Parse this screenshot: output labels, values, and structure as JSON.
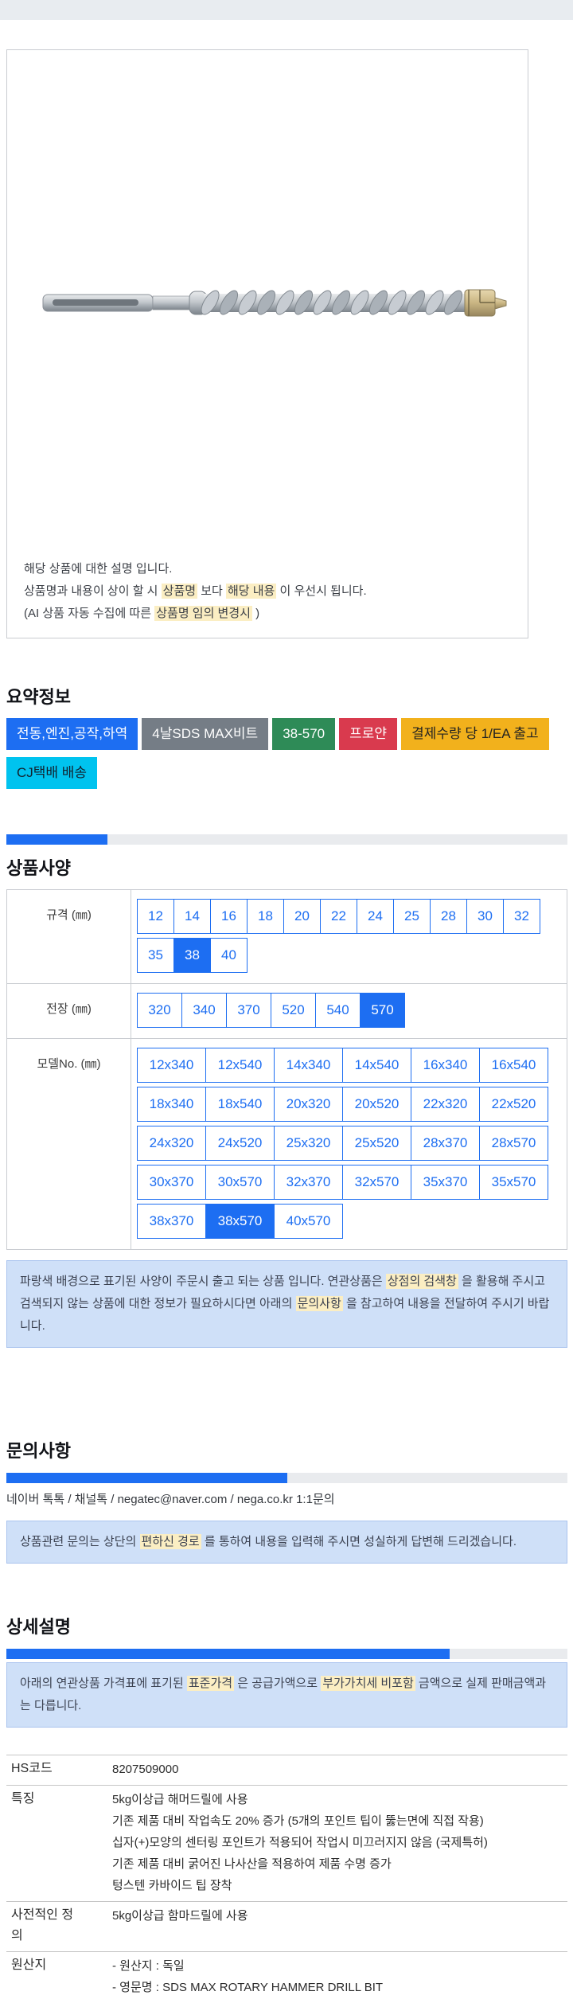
{
  "colors": {
    "accent_blue": "#1d6ef2",
    "highlight_yellow": "#fbeec3",
    "info_box_bg": "#cfe0f8",
    "info_box_border": "#a9c3ee",
    "progress_track": "#e9ebee",
    "topbar_bg": "#e8ecf0"
  },
  "product_box": {
    "image_name": "sds-max-rotary-hammer-drill-bit-photo",
    "description_lines": [
      [
        {
          "text": "해당 상품에 대한 설명 입니다.",
          "hl": false
        }
      ],
      [
        {
          "text": "상품명과 내용이 상이 할 시 ",
          "hl": false
        },
        {
          "text": "상품명",
          "hl": true
        },
        {
          "text": " 보다 ",
          "hl": false
        },
        {
          "text": "해당 내용",
          "hl": true
        },
        {
          "text": " 이 우선시 됩니다.",
          "hl": false
        }
      ],
      [
        {
          "text": "(AI 상품 자동 수집에 따른 ",
          "hl": false
        },
        {
          "text": "상품명 임의 변경시",
          "hl": true
        },
        {
          "text": " )",
          "hl": false
        }
      ]
    ]
  },
  "summary": {
    "title": "요약정보",
    "badges": [
      {
        "label": "전동,엔진,공작,하역",
        "bg": "#1d6ef2",
        "fg": "#ffffff"
      },
      {
        "label": "4날SDS MAX비트",
        "bg": "#757d86",
        "fg": "#ffffff"
      },
      {
        "label": "38-570",
        "bg": "#2e8b57",
        "fg": "#ffffff"
      },
      {
        "label": "프로얀",
        "bg": "#d93a4e",
        "fg": "#ffffff"
      },
      {
        "label": "결제수량 당 1/EA 출고",
        "bg": "#f2b11c",
        "fg": "#222222"
      },
      {
        "label": "CJ택배 배송",
        "bg": "#00c3ef",
        "fg": "#12212e"
      }
    ]
  },
  "specs": {
    "title": "상품사양",
    "progress_percent": 18,
    "rows": [
      {
        "label": "규격 (㎜)",
        "btn_class": "bw46",
        "groups": [
          [
            {
              "label": "12"
            },
            {
              "label": "14"
            },
            {
              "label": "16"
            },
            {
              "label": "18"
            },
            {
              "label": "20"
            },
            {
              "label": "22"
            },
            {
              "label": "24"
            },
            {
              "label": "25"
            },
            {
              "label": "28"
            },
            {
              "label": "30"
            },
            {
              "label": "32"
            }
          ],
          [
            {
              "label": "35"
            },
            {
              "label": "38",
              "selected": true
            },
            {
              "label": "40"
            }
          ]
        ]
      },
      {
        "label": "전장 (㎜)",
        "btn_class": "bw56",
        "groups": [
          [
            {
              "label": "320"
            },
            {
              "label": "340"
            },
            {
              "label": "370"
            },
            {
              "label": "520"
            },
            {
              "label": "540"
            },
            {
              "label": "570",
              "selected": true
            }
          ]
        ]
      },
      {
        "label": "모델No. (㎜)",
        "btn_class": "bw86",
        "groups": [
          [
            {
              "label": "12x340"
            },
            {
              "label": "12x540"
            },
            {
              "label": "14x340"
            },
            {
              "label": "14x540"
            },
            {
              "label": "16x340"
            },
            {
              "label": "16x540"
            }
          ],
          [
            {
              "label": "18x340"
            },
            {
              "label": "18x540"
            },
            {
              "label": "20x320"
            },
            {
              "label": "20x520"
            },
            {
              "label": "22x320"
            },
            {
              "label": "22x520"
            }
          ],
          [
            {
              "label": "24x320"
            },
            {
              "label": "24x520"
            },
            {
              "label": "25x320"
            },
            {
              "label": "25x520"
            },
            {
              "label": "28x370"
            },
            {
              "label": "28x570"
            }
          ],
          [
            {
              "label": "30x370"
            },
            {
              "label": "30x570"
            },
            {
              "label": "32x370"
            },
            {
              "label": "32x570"
            },
            {
              "label": "35x370"
            },
            {
              "label": "35x570"
            }
          ],
          [
            {
              "label": "38x370"
            },
            {
              "label": "38x570",
              "selected": true
            },
            {
              "label": "40x570"
            }
          ]
        ]
      }
    ],
    "note": [
      {
        "text": "파랑색 배경으로 표기된 사양이 주문시 출고 되는 상품 입니다. 연관상품은 ",
        "hl": false
      },
      {
        "text": "상점의 검색창",
        "hl": true
      },
      {
        "text": " 을 활용해 주시고 검색되지 않는 상품에 대한 정보가 필요하시다면 아래의 ",
        "hl": false
      },
      {
        "text": "문의사항",
        "hl": true
      },
      {
        "text": " 을 참고하여 내용을 전달하여 주시기 바랍니다.",
        "hl": false
      }
    ]
  },
  "inquiry": {
    "title": "문의사항",
    "progress_percent": 50,
    "contact": "네이버 톡톡  /  채널톡  /  negatec@naver.com  /  nega.co.kr 1:1문의",
    "note": [
      {
        "text": "상품관련 문의는 상단의 ",
        "hl": false
      },
      {
        "text": "편하신 경로",
        "hl": true
      },
      {
        "text": " 를 통하여 내용을 입력해 주시면 성실하게 답변해 드리겠습니다.",
        "hl": false
      }
    ]
  },
  "detail": {
    "title": "상세설명",
    "progress_percent": 79,
    "note": [
      {
        "text": "아래의 연관상품 가격표에 표기된 ",
        "hl": false
      },
      {
        "text": "표준가격",
        "hl": true
      },
      {
        "text": " 은 공급가액으로 ",
        "hl": false
      },
      {
        "text": "부가가치세 비포함",
        "hl": true
      },
      {
        "text": " 금액으로 실제 판매금액과는 다릅니다.",
        "hl": false
      }
    ],
    "table": [
      {
        "label": "HS코드",
        "lines": [
          "8207509000"
        ]
      },
      {
        "label": "특징",
        "lines": [
          "5kg이상급 해머드릴에 사용",
          "기존 제품 대비 작업속도 20% 증가 (5개의 포인트 팁이 뚫는면에 직접 작용)",
          "십자(+)모양의 센터링 포인트가 적용되어 작업시 미끄러지지 않음 (국제특허)",
          "기존 제품 대비 굵어진 나사산을 적용하여 제품 수명 증가",
          "텅스텐 카바이드 팁 장착"
        ]
      },
      {
        "label": "사전적인 정의",
        "lines": [
          "5kg이상급 함마드릴에 사용"
        ]
      },
      {
        "label": "원산지",
        "lines": [
          "- 원산지 : 독일",
          "- 영문명 : SDS MAX ROTARY HAMMER DRILL BIT"
        ]
      }
    ]
  }
}
